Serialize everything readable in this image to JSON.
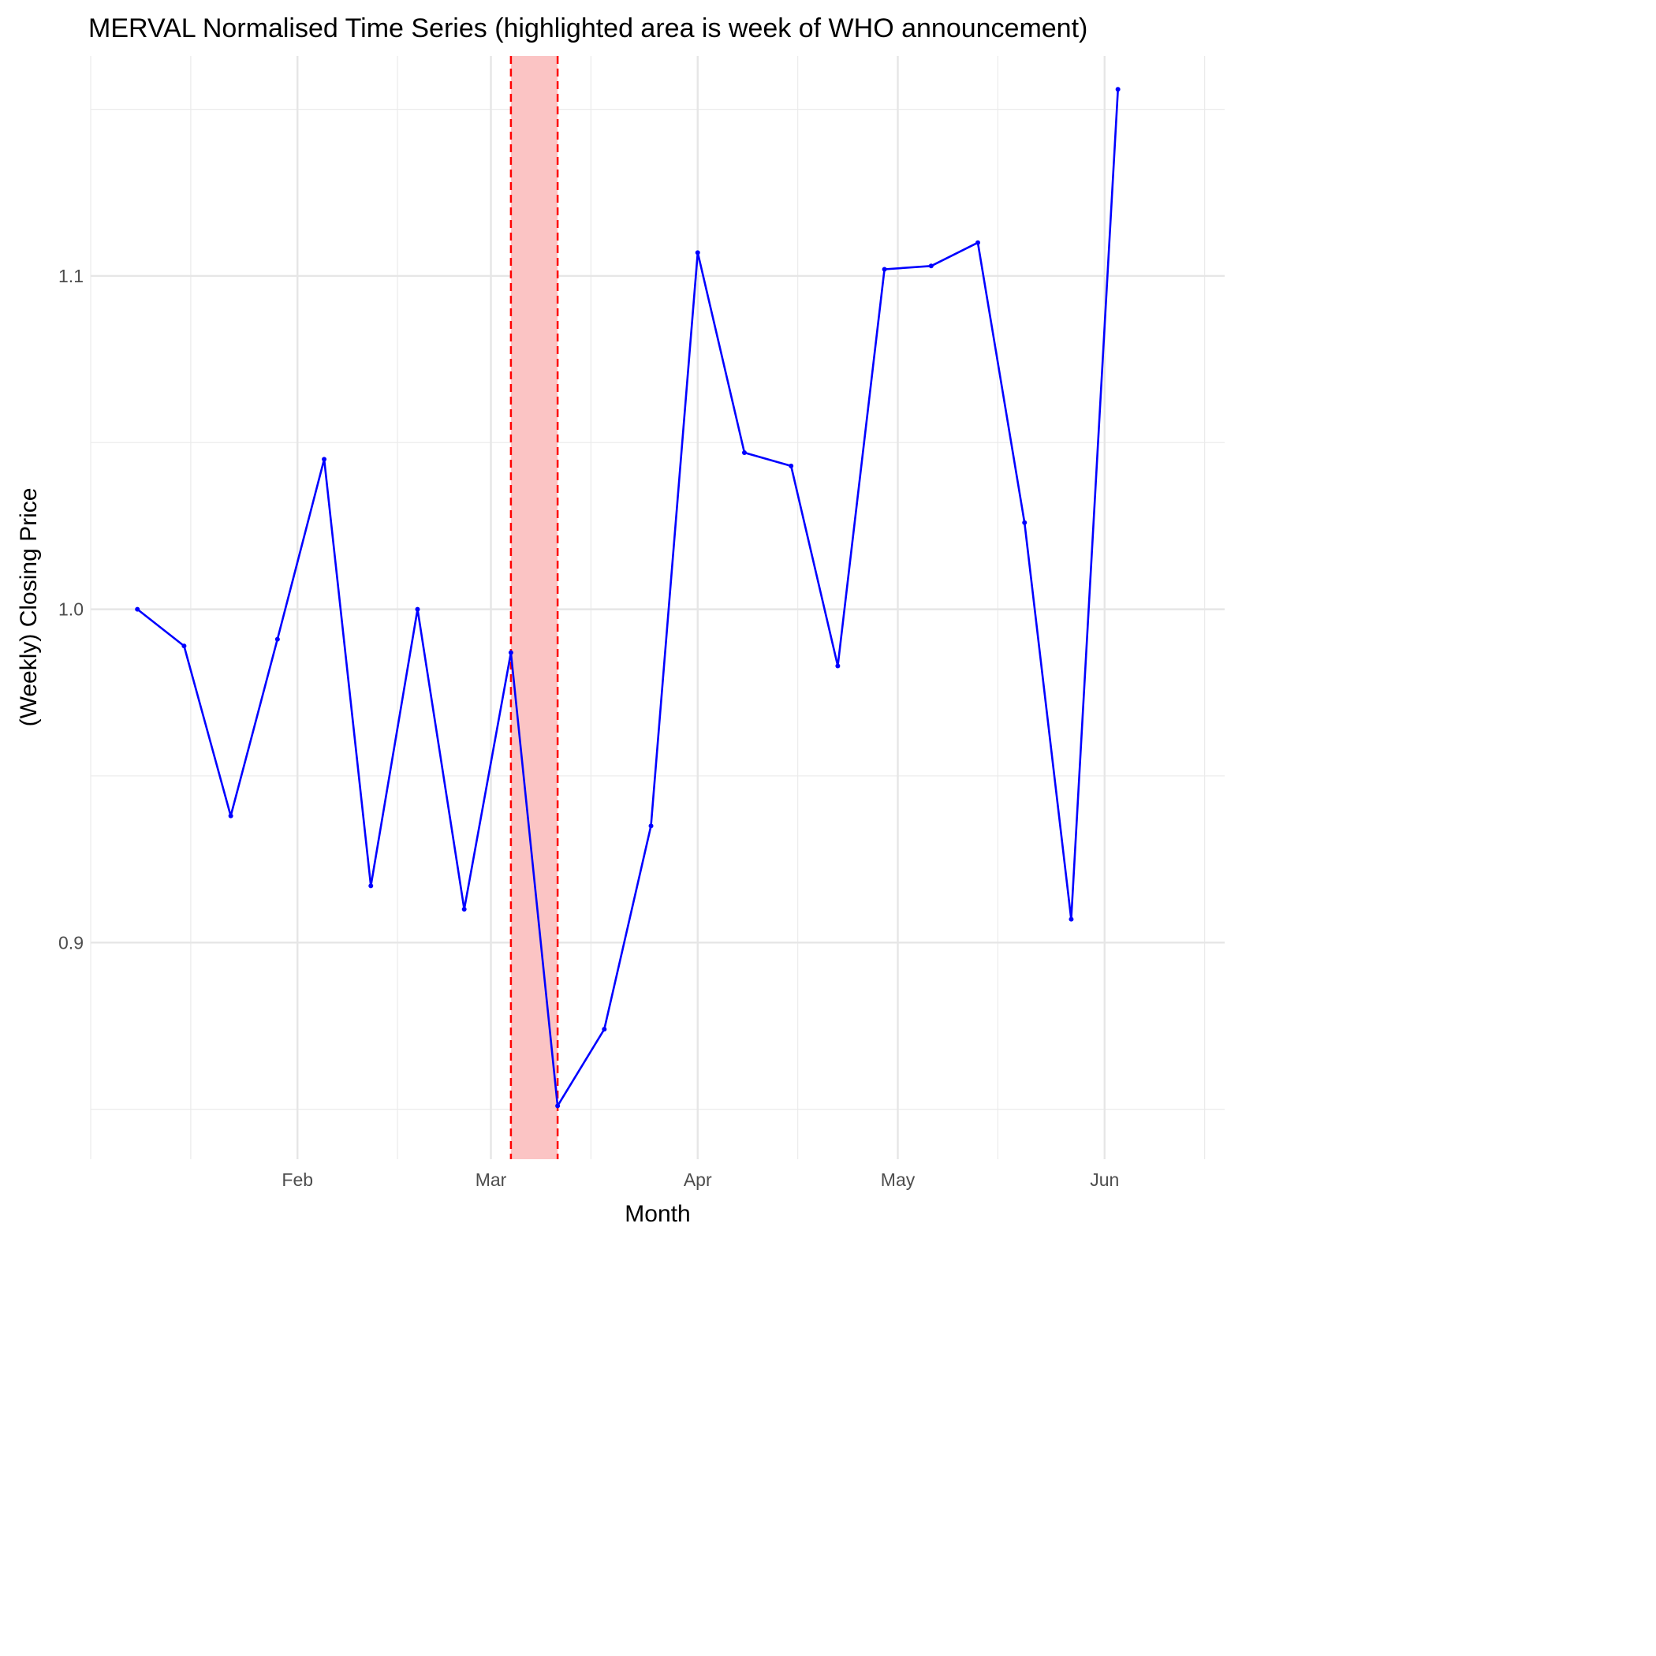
{
  "chart_data": {
    "type": "line",
    "title": "MERVAL Normalised Time Series (highlighted area is week of WHO announcement)",
    "xlabel": "Month",
    "ylabel": "(Weekly) Closing Price",
    "x_tick_labels": [
      "Feb",
      "Mar",
      "Apr",
      "May",
      "Jun"
    ],
    "x_ticks": [
      "2020-02-01",
      "2020-03-01",
      "2020-04-01",
      "2020-05-01",
      "2020-06-01"
    ],
    "x_minor_ticks": [
      "2020-01-01",
      "2020-01-16",
      "2020-02-16",
      "2020-03-16",
      "2020-04-16",
      "2020-05-16",
      "2020-06-16"
    ],
    "y_ticks": [
      0.9,
      1.0,
      1.1
    ],
    "y_tick_labels": [
      "0.9",
      "1.0",
      "1.1"
    ],
    "y_minor_ticks": [
      0.85,
      0.95,
      1.05,
      1.15
    ],
    "xlim": [
      "2020-01-01",
      "2020-06-19"
    ],
    "ylim": [
      0.835,
      1.166
    ],
    "grid": true,
    "series": [
      {
        "color": "#0000ff",
        "x": [
          "2020-01-08",
          "2020-01-15",
          "2020-01-22",
          "2020-01-29",
          "2020-02-05",
          "2020-02-12",
          "2020-02-19",
          "2020-02-26",
          "2020-03-04",
          "2020-03-11",
          "2020-03-18",
          "2020-03-25",
          "2020-04-01",
          "2020-04-08",
          "2020-04-15",
          "2020-04-22",
          "2020-04-29",
          "2020-05-06",
          "2020-05-13",
          "2020-05-20",
          "2020-05-27",
          "2020-06-03"
        ],
        "y": [
          1.0,
          0.989,
          0.938,
          0.991,
          1.045,
          0.917,
          1.0,
          0.91,
          0.987,
          0.851,
          0.874,
          0.935,
          1.107,
          1.047,
          1.043,
          0.983,
          1.102,
          1.103,
          1.11,
          1.026,
          0.907,
          1.156
        ]
      }
    ],
    "highlight": {
      "x_start": "2020-03-04",
      "x_end": "2020-03-11",
      "fill": "#fbc4c4",
      "line_color": "#ff0000"
    }
  }
}
